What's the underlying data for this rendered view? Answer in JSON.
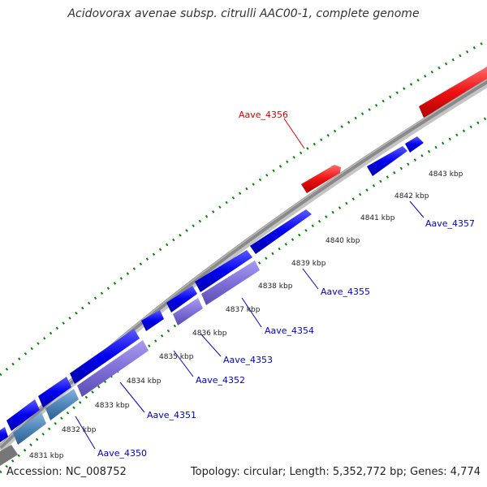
{
  "title": "Acidovorax avenae subsp. citrulli AAC00-1, complete genome",
  "footer": {
    "accession": "Accession: NC_008752",
    "summary": "Topology: circular; Length: 5,352,772 bp; Genes: 4,774"
  },
  "colors": {
    "forward_gene": "#0000ee",
    "reverse_gene": "#ee1111",
    "operon_gene": "#7f6fd8",
    "operon_gene_alt": "#4f86b8",
    "backbone": "#808080",
    "gc_ticks": "#008800",
    "forward_label": "#0000cc",
    "reverse_label": "#dd0000"
  },
  "scale_labels": [
    "4831 kbp",
    "4832 kbp",
    "4833 kbp",
    "4834 kbp",
    "4835 kbp",
    "4836 kbp",
    "4837 kbp",
    "4838 kbp",
    "4839 kbp",
    "4840 kbp",
    "4841 kbp",
    "4842 kbp",
    "4843 kbp"
  ],
  "gene_labels": [
    {
      "name": "Aave_4350",
      "strand": "forward"
    },
    {
      "name": "Aave_4351",
      "strand": "forward"
    },
    {
      "name": "Aave_4352",
      "strand": "forward"
    },
    {
      "name": "Aave_4353",
      "strand": "forward"
    },
    {
      "name": "Aave_4354",
      "strand": "forward"
    },
    {
      "name": "Aave_4355",
      "strand": "forward"
    },
    {
      "name": "Aave_4356",
      "strand": "reverse"
    },
    {
      "name": "Aave_4357",
      "strand": "forward"
    }
  ]
}
